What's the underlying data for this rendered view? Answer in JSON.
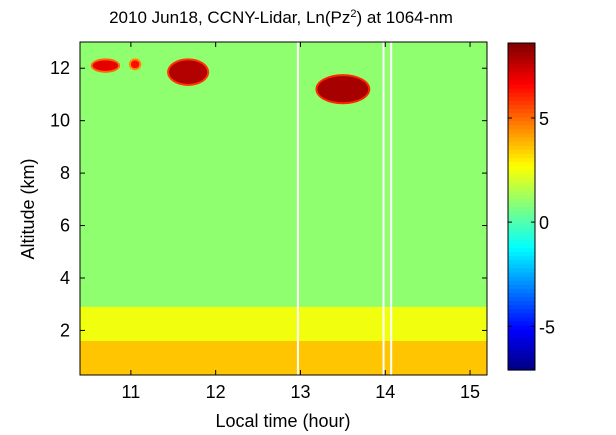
{
  "chart_data": {
    "type": "heatmap",
    "title_parts": {
      "prefix": "2010 Jun18, CCNY-Lidar, Ln(Pz",
      "superscript": "2",
      "suffix": ") at 1064-nm"
    },
    "xlabel": "Local time (hour)",
    "ylabel": "Altitude (km)",
    "xlim": [
      10.4,
      15.2
    ],
    "ylim": [
      0.3,
      13.0
    ],
    "x_ticks": [
      11,
      12,
      13,
      14,
      15
    ],
    "x_tick_labels": [
      "11",
      "12",
      "13",
      "14",
      "15"
    ],
    "y_ticks": [
      2,
      4,
      6,
      8,
      10,
      12
    ],
    "y_tick_labels": [
      "2",
      "4",
      "6",
      "8",
      "10",
      "12"
    ],
    "colorbar": {
      "colormap": "jet",
      "range": [
        -7.1,
        8.6
      ],
      "ticks": [
        -5,
        0,
        5
      ],
      "tick_labels": [
        "-5",
        "0",
        "5"
      ]
    },
    "background_value": 1.0,
    "layers": [
      {
        "feature": "boundary layer",
        "alt_min": 0.3,
        "alt_max": 1.6,
        "value": 3.6
      },
      {
        "feature": "residual aerosol layer",
        "alt_min": 1.6,
        "alt_max": 2.9,
        "value": 2.5
      }
    ],
    "clouds": [
      {
        "time_start": 10.55,
        "time_end": 10.85,
        "alt_min": 11.9,
        "alt_max": 12.3,
        "value": 7.0
      },
      {
        "time_start": 11.0,
        "time_end": 11.1,
        "alt_min": 12.0,
        "alt_max": 12.3,
        "value": 6.5
      },
      {
        "time_start": 11.45,
        "time_end": 11.9,
        "alt_min": 11.4,
        "alt_max": 12.3,
        "value": 7.8
      },
      {
        "time_start": 13.2,
        "time_end": 13.8,
        "alt_min": 10.7,
        "alt_max": 11.7,
        "value": 8.0
      }
    ],
    "data_gaps_hours": [
      12.97,
      13.98,
      14.07
    ]
  }
}
